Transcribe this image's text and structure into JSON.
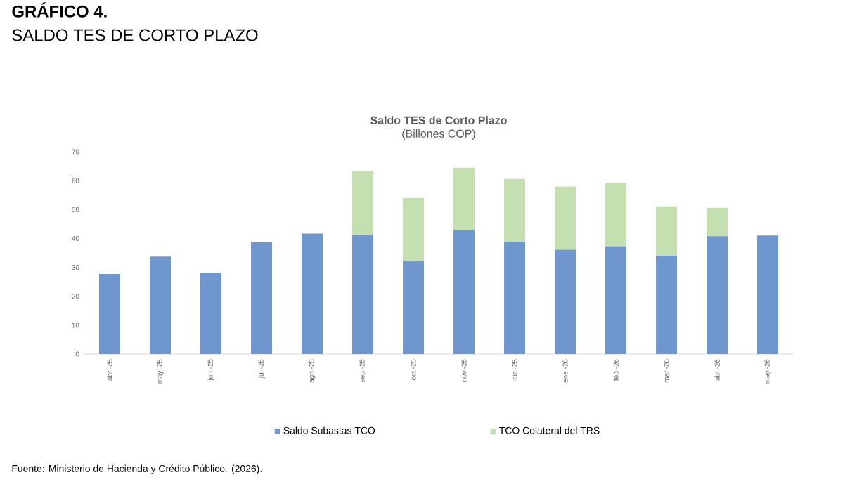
{
  "chart_data": {
    "type": "bar",
    "stacked": true,
    "title": "Saldo TES de Corto Plazo",
    "subtitle": "(Billones COP)",
    "annotations": [
      "GRÁFICO 4.",
      "SALDO TES DE CORTO PLAZO",
      "Fuente: Ministerio de Hacienda y Crédito Público. (2026)."
    ],
    "categories": [
      "abr.-25",
      "may.-25",
      "jun.-25",
      "jul.-25",
      "ago.-25",
      "sep.-25",
      "oct.-25",
      "nov.-25",
      "dic.-25",
      "ene.-26",
      "feb.-26",
      "mar.-26",
      "abr.-26",
      "may.-26"
    ],
    "series": [
      {
        "name": "Saldo Subastas TCO",
        "color": "#6f96cf",
        "values": [
          27.7,
          33.7,
          28.2,
          38.7,
          41.7,
          41.2,
          32.1,
          42.8,
          38.9,
          36.1,
          37.3,
          34.0,
          40.8,
          41.0
        ]
      },
      {
        "name": "TCO Colateral del TRS",
        "color": "#c5e0b0",
        "values": [
          null,
          null,
          null,
          null,
          null,
          22.0,
          21.9,
          21.7,
          21.7,
          21.9,
          21.9,
          17.1,
          9.8,
          null
        ]
      }
    ],
    "ylim": [
      0,
      70
    ],
    "yticks": [
      0,
      10,
      20,
      30,
      40,
      50,
      60,
      70
    ],
    "legend": "bottom"
  }
}
